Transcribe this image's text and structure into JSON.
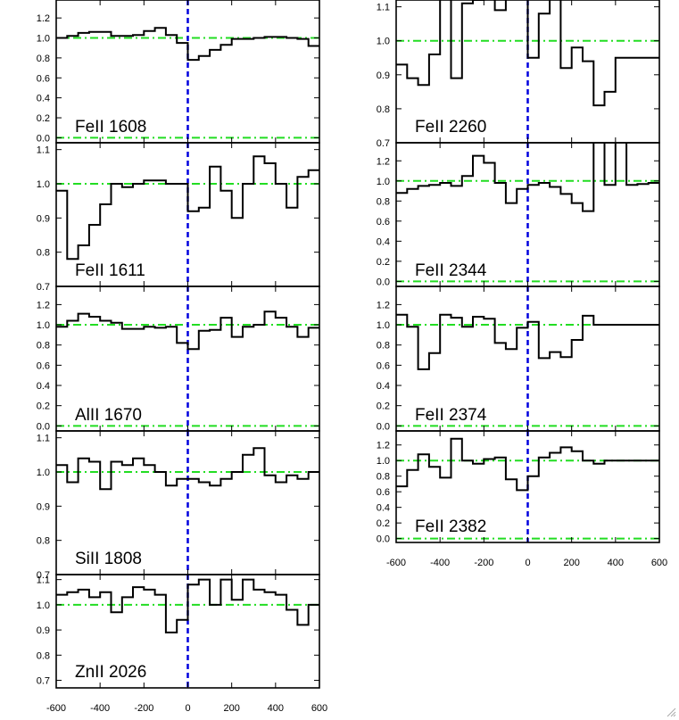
{
  "figure": {
    "x_axis_ticks": [
      "-600",
      "-400",
      "-200",
      "0",
      "200",
      "400",
      "600"
    ],
    "x_range": [
      -600,
      600
    ],
    "reference_line": {
      "y": 1.0,
      "color": "#22dd22",
      "style": "dash-dot"
    },
    "zero_line": {
      "y": 0.0,
      "color": "#22dd22",
      "style": "dash-dot"
    },
    "velocity_marker": {
      "x": 0,
      "color": "#0000dd",
      "style": "dashed"
    },
    "spectrum_color": "#000000",
    "legend": "none",
    "grid": false
  },
  "chart_data": [
    {
      "type": "line",
      "step": true,
      "label": "FeII 1608",
      "ylim": [
        -0.05,
        1.38
      ],
      "yticks": [
        "0.0",
        "0.2",
        "0.4",
        "0.6",
        "0.8",
        "1.0",
        "1.2"
      ],
      "x": [
        -600,
        -550,
        -500,
        -450,
        -400,
        -350,
        -300,
        -250,
        -200,
        -150,
        -100,
        -50,
        0,
        50,
        100,
        150,
        200,
        250,
        300,
        350,
        400,
        450,
        500,
        550,
        600
      ],
      "y": [
        1.0,
        1.02,
        1.05,
        1.06,
        1.06,
        1.02,
        1.02,
        1.03,
        1.07,
        1.1,
        1.03,
        0.95,
        0.78,
        0.82,
        0.88,
        0.93,
        0.99,
        0.99,
        1.0,
        1.01,
        1.01,
        1.0,
        0.99,
        0.92,
        1.0
      ]
    },
    {
      "type": "line",
      "step": true,
      "label": "FeII 1611",
      "ylim": [
        0.7,
        1.12
      ],
      "yticks": [
        "0.7",
        "0.8",
        "0.9",
        "1.0",
        "1.1"
      ],
      "x": [
        -600,
        -550,
        -500,
        -450,
        -400,
        -350,
        -300,
        -250,
        -200,
        -150,
        -100,
        -50,
        0,
        50,
        100,
        150,
        200,
        250,
        300,
        350,
        400,
        450,
        500,
        550,
        600
      ],
      "y": [
        0.98,
        0.78,
        0.82,
        0.88,
        0.94,
        1.0,
        0.99,
        1.0,
        1.01,
        1.01,
        1.0,
        1.0,
        0.92,
        0.93,
        1.05,
        0.98,
        0.9,
        1.0,
        1.08,
        1.06,
        1.0,
        0.93,
        1.02,
        1.04,
        1.0
      ]
    },
    {
      "type": "line",
      "step": true,
      "label": "AlII 1670",
      "ylim": [
        -0.05,
        1.38
      ],
      "yticks": [
        "0.0",
        "0.2",
        "0.4",
        "0.6",
        "0.8",
        "1.0",
        "1.2"
      ],
      "x": [
        -600,
        -550,
        -500,
        -450,
        -400,
        -350,
        -300,
        -250,
        -200,
        -150,
        -100,
        -50,
        0,
        50,
        100,
        150,
        200,
        250,
        300,
        350,
        400,
        450,
        500,
        550,
        600
      ],
      "y": [
        0.98,
        1.04,
        1.11,
        1.08,
        1.04,
        1.02,
        0.96,
        0.96,
        0.98,
        0.97,
        0.98,
        0.82,
        0.76,
        0.94,
        0.95,
        1.07,
        0.88,
        0.98,
        1.0,
        1.13,
        1.07,
        0.98,
        0.88,
        0.97,
        1.0
      ]
    },
    {
      "type": "line",
      "step": true,
      "label": "SiII 1808",
      "ylim": [
        0.7,
        1.12
      ],
      "yticks": [
        "0.7",
        "0.8",
        "0.9",
        "1.0",
        "1.1"
      ],
      "x": [
        -600,
        -550,
        -500,
        -450,
        -400,
        -350,
        -300,
        -250,
        -200,
        -150,
        -100,
        -50,
        0,
        50,
        100,
        150,
        200,
        250,
        300,
        350,
        400,
        450,
        500,
        550,
        600
      ],
      "y": [
        1.02,
        0.97,
        1.04,
        1.03,
        0.95,
        1.03,
        1.02,
        1.04,
        1.02,
        1.0,
        0.96,
        0.98,
        0.98,
        0.97,
        0.96,
        0.98,
        1.0,
        1.05,
        1.07,
        0.99,
        0.97,
        0.99,
        0.98,
        1.0,
        1.0
      ]
    },
    {
      "type": "line",
      "step": true,
      "label": "ZnII 2026",
      "ylim": [
        0.67,
        1.12
      ],
      "yticks": [
        "0.7",
        "0.8",
        "0.9",
        "1.0",
        "1.1"
      ],
      "x": [
        -600,
        -550,
        -500,
        -450,
        -400,
        -350,
        -300,
        -250,
        -200,
        -150,
        -100,
        -50,
        0,
        50,
        100,
        150,
        200,
        250,
        300,
        350,
        400,
        450,
        500,
        550,
        600
      ],
      "y": [
        1.04,
        1.05,
        1.06,
        1.03,
        1.05,
        0.97,
        1.03,
        1.07,
        1.06,
        1.04,
        0.89,
        0.94,
        1.08,
        1.1,
        1.0,
        1.1,
        1.02,
        1.1,
        1.06,
        1.05,
        1.04,
        0.98,
        0.92,
        1.0,
        1.0
      ]
    },
    {
      "type": "line",
      "step": true,
      "label": "FeII 2260",
      "ylim": [
        0.7,
        1.12
      ],
      "yticks": [
        "0.7",
        "0.8",
        "0.9",
        "1.0",
        "1.1"
      ],
      "x": [
        -600,
        -550,
        -500,
        -450,
        -400,
        -350,
        -300,
        -250,
        -200,
        -150,
        -100,
        -50,
        0,
        50,
        100,
        150,
        200,
        250,
        300,
        350,
        400,
        450,
        500,
        550,
        600
      ],
      "y": [
        0.93,
        0.89,
        0.87,
        0.96,
        1.13,
        0.89,
        1.11,
        1.12,
        1.13,
        1.09,
        1.13,
        1.13,
        0.95,
        1.08,
        1.13,
        0.92,
        0.98,
        0.94,
        0.81,
        0.85,
        0.95,
        0.95,
        0.95,
        0.95,
        1.0
      ]
    },
    {
      "type": "line",
      "step": true,
      "label": "FeII 2344",
      "ylim": [
        -0.05,
        1.38
      ],
      "yticks": [
        "0.0",
        "0.2",
        "0.4",
        "0.6",
        "0.8",
        "1.0",
        "1.2"
      ],
      "x": [
        -600,
        -550,
        -500,
        -450,
        -400,
        -350,
        -300,
        -250,
        -200,
        -150,
        -100,
        -50,
        0,
        50,
        100,
        150,
        200,
        250,
        300,
        350,
        400,
        450,
        500,
        550,
        600
      ],
      "y": [
        0.88,
        0.92,
        0.95,
        0.96,
        0.98,
        0.95,
        1.05,
        1.25,
        1.18,
        0.98,
        0.78,
        0.92,
        0.96,
        0.98,
        0.94,
        0.87,
        0.78,
        0.7,
        1.45,
        0.96,
        1.45,
        0.96,
        0.97,
        0.98,
        1.0
      ]
    },
    {
      "type": "line",
      "step": true,
      "label": "FeII 2374",
      "ylim": [
        -0.05,
        1.38
      ],
      "yticks": [
        "0.0",
        "0.2",
        "0.4",
        "0.6",
        "0.8",
        "1.0",
        "1.2"
      ],
      "x": [
        -600,
        -550,
        -500,
        -450,
        -400,
        -350,
        -300,
        -250,
        -200,
        -150,
        -100,
        -50,
        0,
        50,
        100,
        150,
        200,
        250,
        300,
        350,
        400,
        450,
        500,
        550,
        600
      ],
      "y": [
        1.1,
        0.98,
        0.56,
        0.72,
        1.1,
        1.07,
        0.98,
        1.08,
        1.06,
        0.82,
        0.76,
        0.97,
        1.03,
        0.67,
        0.73,
        0.68,
        0.85,
        1.09,
        1.0,
        1.0,
        1.0,
        1.0,
        1.0,
        1.0,
        1.0
      ]
    },
    {
      "type": "line",
      "step": true,
      "label": "FeII 2382",
      "ylim": [
        -0.05,
        1.38
      ],
      "yticks": [
        "0.0",
        "0.2",
        "0.4",
        "0.6",
        "0.8",
        "1.0",
        "1.2"
      ],
      "x": [
        -600,
        -550,
        -500,
        -450,
        -400,
        -350,
        -300,
        -250,
        -200,
        -150,
        -100,
        -50,
        0,
        50,
        100,
        150,
        200,
        250,
        300,
        350,
        400,
        450,
        500,
        550,
        600
      ],
      "y": [
        0.67,
        0.88,
        1.08,
        0.92,
        0.78,
        1.28,
        1.0,
        0.96,
        1.02,
        1.04,
        0.76,
        0.62,
        0.8,
        1.04,
        1.1,
        1.17,
        1.12,
        1.0,
        0.96,
        1.0,
        1.0,
        1.0,
        1.0,
        1.0,
        1.0
      ]
    }
  ]
}
